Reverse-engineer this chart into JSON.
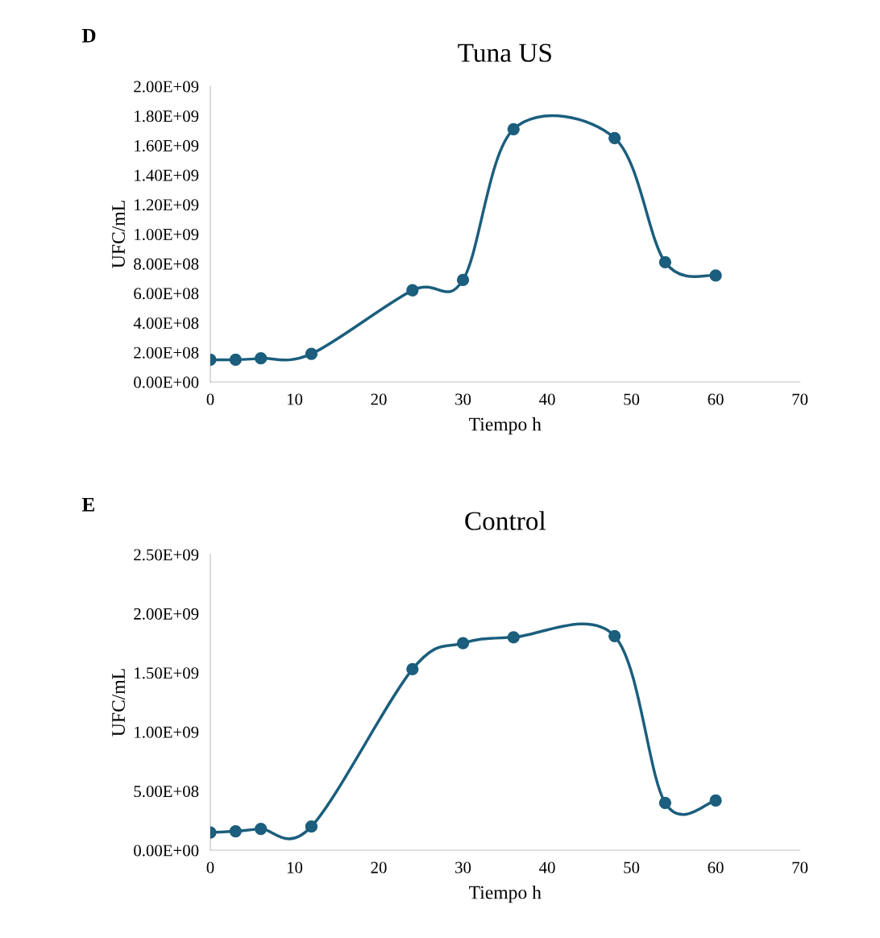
{
  "chart_data": [
    {
      "type": "line",
      "title": "Tuna US",
      "xlabel": "Tiempo h",
      "ylabel": "UFC/mL",
      "annotations": [
        "D"
      ],
      "x": [
        0,
        3,
        6,
        12,
        24,
        30,
        36,
        48,
        54,
        60
      ],
      "marker": "circle",
      "series": [
        {
          "color": "#1b5e7d",
          "values": [
            150000000,
            150000000,
            160000000,
            190000000,
            620000000,
            690000000,
            1710000000,
            1650000000,
            810000000,
            720000000
          ]
        }
      ],
      "xlim": [
        0,
        70
      ],
      "xticks": [
        0,
        10,
        20,
        30,
        40,
        50,
        60,
        70
      ],
      "ylim": [
        0,
        2000000000
      ],
      "yticks": [
        {
          "value": 0,
          "label": "0.00E+00"
        },
        {
          "value": 200000000,
          "label": "2.00E+08"
        },
        {
          "value": 400000000,
          "label": "4.00E+08"
        },
        {
          "value": 600000000,
          "label": "6.00E+08"
        },
        {
          "value": 800000000,
          "label": "8.00E+08"
        },
        {
          "value": 1000000000,
          "label": "1.00E+09"
        },
        {
          "value": 1200000000,
          "label": "1.20E+09"
        },
        {
          "value": 1400000000,
          "label": "1.40E+09"
        },
        {
          "value": 1600000000,
          "label": "1.60E+09"
        },
        {
          "value": 1800000000,
          "label": "1.80E+09"
        },
        {
          "value": 2000000000,
          "label": "2.00E+09"
        }
      ]
    },
    {
      "type": "line",
      "title": "Control",
      "xlabel": "Tiempo h",
      "ylabel": "UFC/mL",
      "annotations": [
        "E"
      ],
      "x": [
        0,
        3,
        6,
        12,
        24,
        30,
        36,
        48,
        54,
        60
      ],
      "marker": "circle",
      "series": [
        {
          "color": "#1b5e7d",
          "values": [
            150000000,
            160000000,
            180000000,
            200000000,
            1530000000,
            1750000000,
            1800000000,
            1810000000,
            400000000,
            420000000
          ]
        }
      ],
      "xlim": [
        0,
        70
      ],
      "xticks": [
        0,
        10,
        20,
        30,
        40,
        50,
        60,
        70
      ],
      "ylim": [
        0,
        2500000000
      ],
      "yticks": [
        {
          "value": 0,
          "label": "0.00E+00"
        },
        {
          "value": 500000000,
          "label": "5.00E+08"
        },
        {
          "value": 1000000000,
          "label": "1.00E+09"
        },
        {
          "value": 1500000000,
          "label": "1.50E+09"
        },
        {
          "value": 2000000000,
          "label": "2.00E+09"
        },
        {
          "value": 2500000000,
          "label": "2.50E+09"
        }
      ]
    }
  ]
}
